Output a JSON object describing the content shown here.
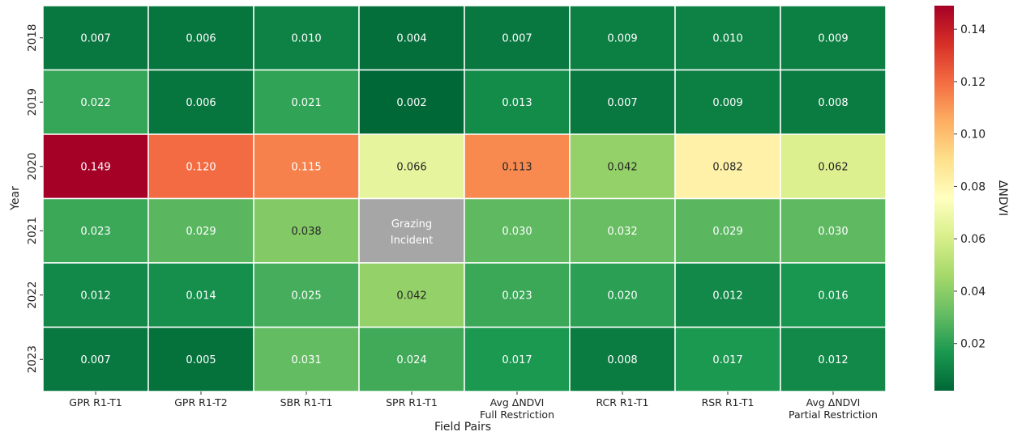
{
  "chart_data": {
    "type": "heatmap",
    "title": "",
    "xlabel": "Field Pairs",
    "ylabel": "Year",
    "x_categories": [
      [
        "GPR R1-T1"
      ],
      [
        "GPR R1-T2"
      ],
      [
        "SBR R1-T1"
      ],
      [
        "SPR R1-T1"
      ],
      [
        "Avg ΔNDVI",
        "Full Restriction"
      ],
      [
        "RCR R1-T1"
      ],
      [
        "RSR R1-T1"
      ],
      [
        "Avg ΔNDVI",
        "Partial Restriction"
      ]
    ],
    "y_categories": [
      "2018",
      "2019",
      "2020",
      "2021",
      "2022",
      "2023"
    ],
    "values": [
      [
        0.007,
        0.006,
        0.01,
        0.004,
        0.007,
        0.009,
        0.01,
        0.009
      ],
      [
        0.022,
        0.006,
        0.021,
        0.002,
        0.013,
        0.007,
        0.009,
        0.008
      ],
      [
        0.149,
        0.12,
        0.115,
        0.066,
        0.113,
        0.042,
        0.082,
        0.062
      ],
      [
        0.023,
        0.029,
        0.038,
        null,
        0.03,
        0.032,
        0.029,
        0.03
      ],
      [
        0.012,
        0.014,
        0.025,
        0.042,
        0.023,
        0.02,
        0.012,
        0.016
      ],
      [
        0.007,
        0.005,
        0.031,
        0.024,
        0.017,
        0.008,
        0.017,
        0.012
      ]
    ],
    "annotation_cell": {
      "row": 3,
      "col": 3,
      "lines": [
        "Grazing",
        "Incident"
      ],
      "color": "#a6a6a6"
    },
    "value_format_decimals": 3,
    "colormap": "RdYlGn_r",
    "colorbar": {
      "label": "ΔNDVI",
      "min": 0.002,
      "max": 0.149,
      "ticks": [
        0.02,
        0.04,
        0.06,
        0.08,
        0.1,
        0.12,
        0.14
      ],
      "tick_labels": [
        "0.02",
        "0.04",
        "0.06",
        "0.08",
        "0.10",
        "0.12",
        "0.14"
      ]
    },
    "grid": false,
    "legend": "colorbar-right"
  }
}
